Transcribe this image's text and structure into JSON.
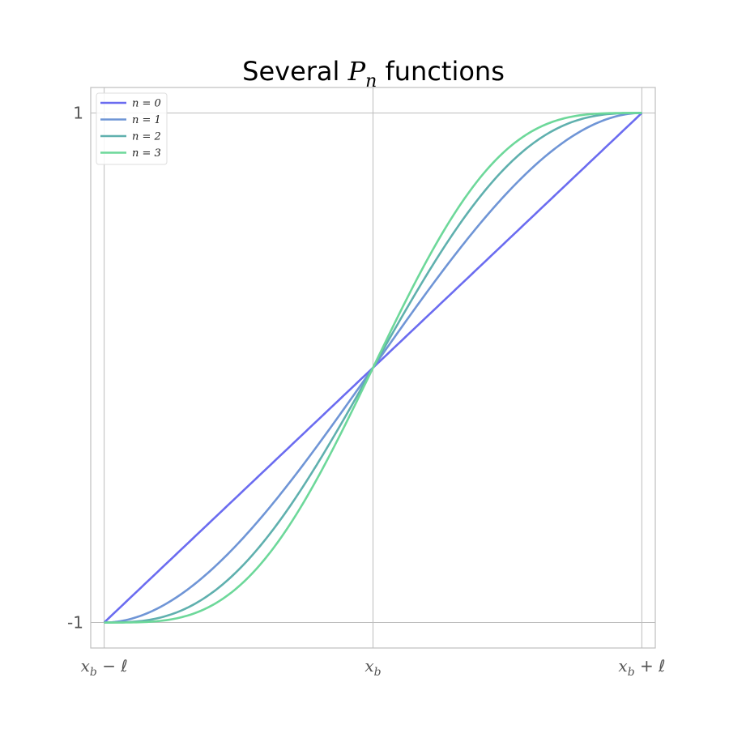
{
  "chart_data": {
    "type": "line",
    "title": {
      "prefix": "Several ",
      "symbol": "P",
      "subscript": "n",
      "suffix": " functions"
    },
    "x_ticks": [
      {
        "value": -1,
        "base": "x",
        "sub": "b",
        "rest": " − ℓ"
      },
      {
        "value": 0,
        "base": "x",
        "sub": "b",
        "rest": ""
      },
      {
        "value": 1,
        "base": "x",
        "sub": "b",
        "rest": " + ℓ"
      }
    ],
    "y_ticks": [
      {
        "value": 1,
        "label": "1"
      },
      {
        "value": -1,
        "label": "-1"
      }
    ],
    "xlim": [
      -1.05,
      1.05
    ],
    "ylim": [
      -1.1,
      1.1
    ],
    "grid": true,
    "legend_position": "top-left",
    "series": [
      {
        "name": "n = 0",
        "n": 0,
        "color": "#6b6cf0",
        "x": [
          -1,
          -0.5,
          0,
          0.5,
          1
        ],
        "y": [
          -1,
          -0.5,
          0,
          0.5,
          1
        ]
      },
      {
        "name": "n = 1",
        "n": 1,
        "color": "#6f95d6",
        "x": [
          -1,
          -0.5,
          0,
          0.5,
          1
        ],
        "y": [
          -1,
          -0.69,
          0,
          0.69,
          1
        ]
      },
      {
        "name": "n = 2",
        "n": 2,
        "color": "#5fb0ae",
        "x": [
          -1,
          -0.5,
          0,
          0.5,
          1
        ],
        "y": [
          -1,
          -0.79,
          0,
          0.79,
          1
        ]
      },
      {
        "name": "n = 3",
        "n": 3,
        "color": "#6dd89a",
        "x": [
          -1,
          -0.5,
          0,
          0.5,
          1
        ],
        "y": [
          -1,
          -0.85,
          0,
          0.85,
          1
        ]
      }
    ]
  }
}
